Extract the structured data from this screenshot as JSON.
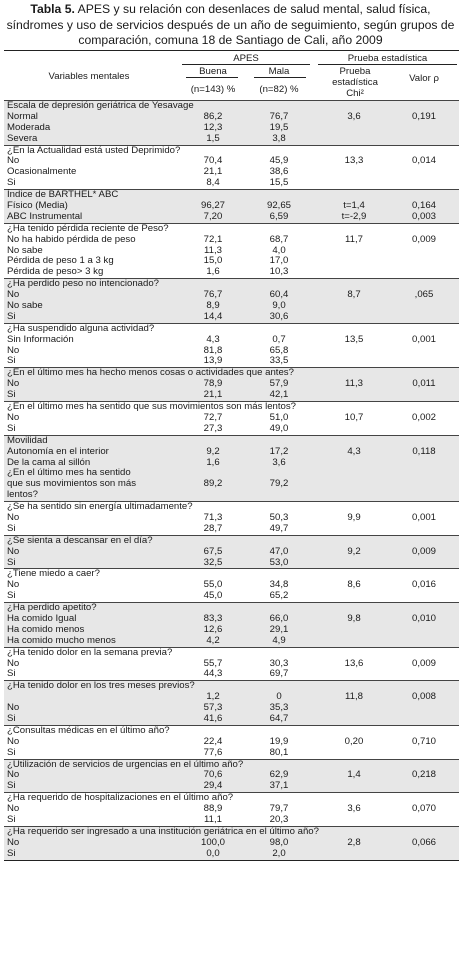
{
  "title": {
    "label": "Tabla 5.",
    "text": "APES y su relación con desenlaces de salud mental, salud física, síndromes y uso de servicios después de un año de seguimiento, según grupos de comparación, comuna 18 de Santiago de Cali, año 2009"
  },
  "header": {
    "variables": "Variables mentales",
    "apes": "APES",
    "prueba": "Prueba estadística",
    "buena": "Buena",
    "mala": "Mala",
    "buena_n": "(n=143) %",
    "mala_n": "(n=82) %",
    "chi": "Prueba estadística Chi²",
    "valor": "Valor ρ"
  },
  "sections": [
    {
      "shade": true,
      "lines": [
        {
          "label": "Escala de depresión geriátrica de Yesavage",
          "b": "",
          "m": "",
          "chi": "",
          "p": ""
        },
        {
          "label": "Normal",
          "b": "86,2",
          "m": "76,7",
          "chi": "3,6",
          "p": "0,191"
        },
        {
          "label": "Moderada",
          "b": "12,3",
          "m": "19,5",
          "chi": "",
          "p": ""
        },
        {
          "label": "Severa",
          "b": "1,5",
          "m": "3,8",
          "chi": "",
          "p": ""
        }
      ]
    },
    {
      "shade": false,
      "lines": [
        {
          "label": "¿En la Actualidad está usted Deprimido?",
          "b": "",
          "m": "",
          "chi": "",
          "p": ""
        },
        {
          "label": "No",
          "b": "70,4",
          "m": "45,9",
          "chi": "13,3",
          "p": "0,014"
        },
        {
          "label": "Ocasionalmente",
          "b": "21,1",
          "m": "38,6",
          "chi": "",
          "p": ""
        },
        {
          "label": "Si",
          "b": "8,4",
          "m": "15,5",
          "chi": "",
          "p": ""
        }
      ]
    },
    {
      "shade": true,
      "lines": [
        {
          "label": "Índice de BARTHEL* ABC",
          "b": "",
          "m": "",
          "chi": "",
          "p": ""
        },
        {
          "label": "Físico (Media)",
          "b": "96,27",
          "m": "92,65",
          "chi": "t=1,4",
          "p": "0,164"
        },
        {
          "label": "ABC Instrumental",
          "b": "7,20",
          "m": "6,59",
          "chi": "t=-2,9",
          "p": "0,003"
        }
      ]
    },
    {
      "shade": false,
      "lines": [
        {
          "label": "¿Ha tenido pérdida reciente de Peso?",
          "b": "",
          "m": "",
          "chi": "",
          "p": ""
        },
        {
          "label": "No ha habido pérdida de peso",
          "b": "72,1",
          "m": "68,7",
          "chi": "11,7",
          "p": "0,009"
        },
        {
          "label": "No sabe",
          "b": "11,3",
          "m": "4,0",
          "chi": "",
          "p": ""
        },
        {
          "label": "Pérdida de peso 1 a 3 kg",
          "b": "15,0",
          "m": "17,0",
          "chi": "",
          "p": ""
        },
        {
          "label": "Pérdida de peso> 3 kg",
          "b": "1,6",
          "m": "10,3",
          "chi": "",
          "p": ""
        }
      ]
    },
    {
      "shade": true,
      "lines": [
        {
          "label": "¿Ha perdido peso no intencionado?",
          "b": "",
          "m": "",
          "chi": "",
          "p": ""
        },
        {
          "label": "No",
          "b": "76,7",
          "m": "60,4",
          "chi": "8,7",
          "p": ",065"
        },
        {
          "label": "No sabe",
          "b": "8,9",
          "m": "9,0",
          "chi": "",
          "p": ""
        },
        {
          "label": "Si",
          "b": "14,4",
          "m": "30,6",
          "chi": "",
          "p": ""
        }
      ]
    },
    {
      "shade": false,
      "lines": [
        {
          "label": "¿Ha suspendido alguna actividad?",
          "b": "",
          "m": "",
          "chi": "",
          "p": ""
        },
        {
          "label": "Sin Información",
          "b": "4,3",
          "m": "0,7",
          "chi": "13,5",
          "p": "0,001"
        },
        {
          "label": "No",
          "b": "81,8",
          "m": "65,8",
          "chi": "",
          "p": ""
        },
        {
          "label": "Si",
          "b": "13,9",
          "m": "33,5",
          "chi": "",
          "p": ""
        }
      ]
    },
    {
      "shade": true,
      "lines": [
        {
          "label": "¿En el último mes ha hecho menos cosas o actividades que antes?",
          "b": "",
          "m": "",
          "chi": "",
          "p": ""
        },
        {
          "label": "No",
          "b": "78,9",
          "m": "57,9",
          "chi": "11,3",
          "p": "0,011"
        },
        {
          "label": "Si",
          "b": "21,1",
          "m": "42,1",
          "chi": "",
          "p": ""
        }
      ]
    },
    {
      "shade": false,
      "lines": [
        {
          "label": "¿En el último mes ha sentido que sus movimientos son más lentos?",
          "b": "",
          "m": "",
          "chi": "",
          "p": ""
        },
        {
          "label": "No",
          "b": "72,7",
          "m": "51,0",
          "chi": "10,7",
          "p": "0,002"
        },
        {
          "label": "Si",
          "b": "27,3",
          "m": "49,0",
          "chi": "",
          "p": ""
        }
      ]
    },
    {
      "shade": true,
      "lines": [
        {
          "label": "Movilidad",
          "b": "",
          "m": "",
          "chi": "",
          "p": ""
        },
        {
          "label": "Autonomía en el interior",
          "b": "9,2",
          "m": "17,2",
          "chi": "4,3",
          "p": "0,118"
        },
        {
          "label": "De la cama al sillón",
          "b": "1,6",
          "m": "3,6",
          "chi": "",
          "p": ""
        },
        {
          "label": "¿En el último mes ha sentido",
          "b": "",
          "m": "",
          "chi": "",
          "p": ""
        },
        {
          "label": "que sus movimientos son más",
          "b": "89,2",
          "m": "79,2",
          "chi": "",
          "p": ""
        },
        {
          "label": "lentos?",
          "b": "",
          "m": "",
          "chi": "",
          "p": ""
        }
      ]
    },
    {
      "shade": false,
      "lines": [
        {
          "label": "¿Se ha sentido sin energía ultimadamente?",
          "b": "",
          "m": "",
          "chi": "",
          "p": ""
        },
        {
          "label": "No",
          "b": "71,3",
          "m": "50,3",
          "chi": "9,9",
          "p": "0,001"
        },
        {
          "label": "Si",
          "b": "28,7",
          "m": "49,7",
          "chi": "",
          "p": ""
        }
      ]
    },
    {
      "shade": true,
      "lines": [
        {
          "label": "¿Se sienta a descansar en el día?",
          "b": "",
          "m": "",
          "chi": "",
          "p": ""
        },
        {
          "label": "No",
          "b": "67,5",
          "m": "47,0",
          "chi": "9,2",
          "p": "0,009"
        },
        {
          "label": "Si",
          "b": "32,5",
          "m": "53,0",
          "chi": "",
          "p": ""
        }
      ]
    },
    {
      "shade": false,
      "lines": [
        {
          "label": "¿Tiene miedo a caer?",
          "b": "",
          "m": "",
          "chi": "",
          "p": ""
        },
        {
          "label": "No",
          "b": "55,0",
          "m": "34,8",
          "chi": "8,6",
          "p": "0,016"
        },
        {
          "label": "Si",
          "b": "45,0",
          "m": "65,2",
          "chi": "",
          "p": ""
        }
      ]
    },
    {
      "shade": true,
      "lines": [
        {
          "label": "¿Ha perdido apetito?",
          "b": "",
          "m": "",
          "chi": "",
          "p": ""
        },
        {
          "label": "Ha comido Igual",
          "b": "83,3",
          "m": "66,0",
          "chi": "9,8",
          "p": "0,010"
        },
        {
          "label": "Ha comido menos",
          "b": "12,6",
          "m": "29,1",
          "chi": "",
          "p": ""
        },
        {
          "label": "Ha comido mucho menos",
          "b": "4,2",
          "m": "4,9",
          "chi": "",
          "p": ""
        }
      ]
    },
    {
      "shade": false,
      "lines": [
        {
          "label": "¿Ha tenido dolor en la semana previa?",
          "b": "",
          "m": "",
          "chi": "",
          "p": ""
        },
        {
          "label": "No",
          "b": "55,7",
          "m": "30,3",
          "chi": "13,6",
          "p": "0,009"
        },
        {
          "label": "Si",
          "b": "44,3",
          "m": "69,7",
          "chi": "",
          "p": ""
        }
      ]
    },
    {
      "shade": true,
      "lines": [
        {
          "label": "¿Ha tenido dolor en los tres meses previos?",
          "b": "",
          "m": "",
          "chi": "",
          "p": ""
        },
        {
          "label": "",
          "b": "1,2",
          "m": "0",
          "chi": "11,8",
          "p": "0,008"
        },
        {
          "label": "No",
          "b": "57,3",
          "m": "35,3",
          "chi": "",
          "p": ""
        },
        {
          "label": "Si",
          "b": "41,6",
          "m": "64,7",
          "chi": "",
          "p": ""
        }
      ]
    },
    {
      "shade": false,
      "lines": [
        {
          "label": "¿Consultas médicas en el último año?",
          "b": "",
          "m": "",
          "chi": "",
          "p": ""
        },
        {
          "label": "No",
          "b": "22,4",
          "m": "19,9",
          "chi": "0,20",
          "p": "0,710"
        },
        {
          "label": "Si",
          "b": "77,6",
          "m": "80,1",
          "chi": "",
          "p": ""
        }
      ]
    },
    {
      "shade": true,
      "lines": [
        {
          "label": "¿Utilización de servicios de urgencias en el último año?",
          "b": "",
          "m": "",
          "chi": "",
          "p": ""
        },
        {
          "label": "No",
          "b": "70,6",
          "m": "62,9",
          "chi": "1,4",
          "p": "0,218"
        },
        {
          "label": "Si",
          "b": "29,4",
          "m": "37,1",
          "chi": "",
          "p": ""
        }
      ]
    },
    {
      "shade": false,
      "lines": [
        {
          "label": "¿Ha requerido de hospitalizaciones en el último año?",
          "b": "",
          "m": "",
          "chi": "",
          "p": ""
        },
        {
          "label": "No",
          "b": "88,9",
          "m": "79,7",
          "chi": "3,6",
          "p": "0,070"
        },
        {
          "label": "Si",
          "b": "11,1",
          "m": "20,3",
          "chi": "",
          "p": ""
        }
      ]
    },
    {
      "shade": true,
      "lines": [
        {
          "label": "¿Ha requerido ser ingresado a una institución geriátrica en el último año?",
          "b": "",
          "m": "",
          "chi": "",
          "p": ""
        },
        {
          "label": "No",
          "b": "100,0",
          "m": "98,0",
          "chi": "2,8",
          "p": "0,066"
        },
        {
          "label": "Si",
          "b": "0,0",
          "m": "2,0",
          "chi": "",
          "p": ""
        }
      ]
    }
  ]
}
